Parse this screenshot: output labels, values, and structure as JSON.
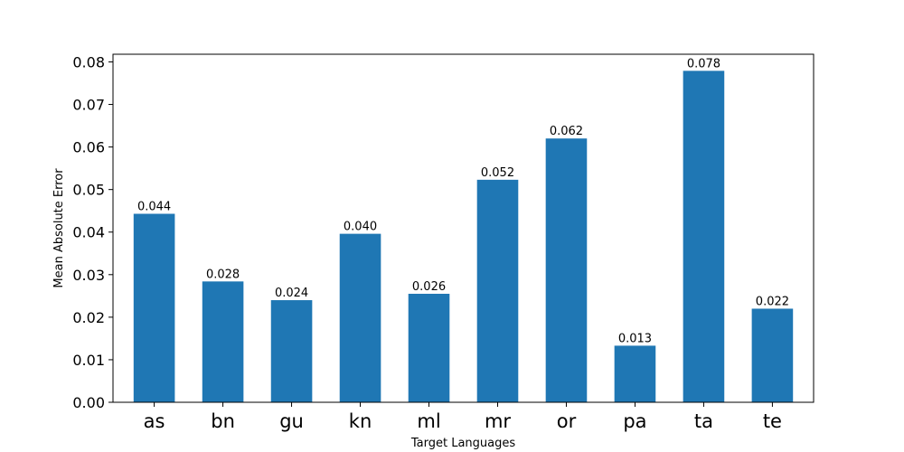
{
  "chart_data": {
    "type": "bar",
    "categories": [
      "as",
      "bn",
      "gu",
      "kn",
      "ml",
      "mr",
      "or",
      "pa",
      "ta",
      "te"
    ],
    "values": [
      0.0443,
      0.0284,
      0.024,
      0.0396,
      0.0255,
      0.0523,
      0.062,
      0.0133,
      0.0779,
      0.022
    ],
    "data_labels": [
      "0.044",
      "0.028",
      "0.024",
      "0.040",
      "0.026",
      "0.052",
      "0.062",
      "0.013",
      "0.078",
      "0.022"
    ],
    "xlabel": "Target Languages",
    "ylabel": "Mean Absolute Error",
    "ylim": [
      0,
      0.0818
    ],
    "yticks": [
      0.0,
      0.01,
      0.02,
      0.03,
      0.04,
      0.05,
      0.06,
      0.07,
      0.08
    ],
    "ytick_labels": [
      "0.00",
      "0.01",
      "0.02",
      "0.03",
      "0.04",
      "0.05",
      "0.06",
      "0.07",
      "0.08"
    ],
    "bar_color": "#1f77b4",
    "grid": false,
    "legend": "none"
  }
}
